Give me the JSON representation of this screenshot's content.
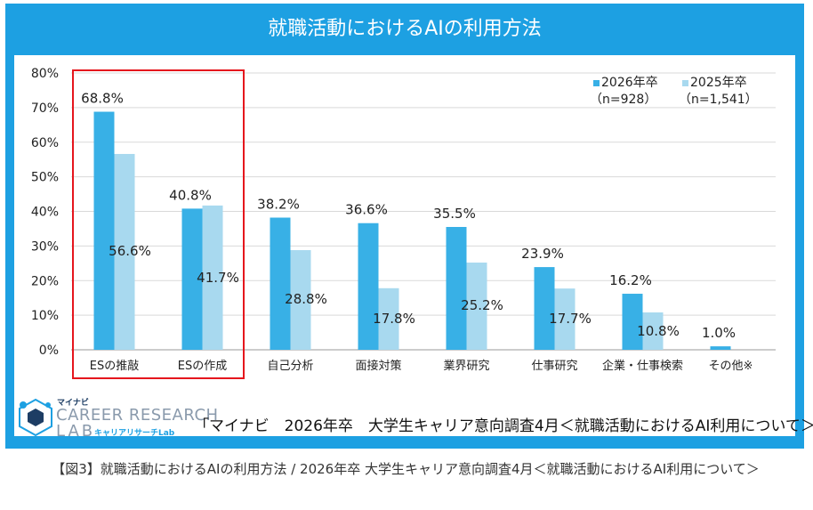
{
  "title": "就職活動におけるAIの利用方法",
  "legend": {
    "series1_label": "2026年卒",
    "series1_n": "（n=928）",
    "series2_label": "2025年卒",
    "series2_n": "（n=1,541）"
  },
  "logo": {
    "small": "マイナビ",
    "line1": "CAREER RESEARCH",
    "line2": "LAB",
    "jp": "キャリアリサーチLab"
  },
  "source": "「マイナビ　2026年卒　大学生キャリア意向調査4月＜就職活動におけるAI利用について＞」",
  "caption": "【図3】就職活動におけるAIの利用方法 / 2026年卒 大学生キャリア意向調査4月＜就職活動におけるAI利用について＞",
  "colors": {
    "frame": "#1da0e2",
    "series1": "#38b0e6",
    "series2": "#a8d9ef",
    "highlight": "#e5161d"
  },
  "chart_data": {
    "type": "bar",
    "categories": [
      "ESの推敲",
      "ESの作成",
      "自己分析",
      "面接対策",
      "業界研究",
      "仕事研究",
      "企業・仕事検索",
      "その他※"
    ],
    "series": [
      {
        "name": "2026年卒",
        "values": [
          68.8,
          40.8,
          38.2,
          36.6,
          35.5,
          23.9,
          16.2,
          1.0
        ],
        "labels": [
          "68.8%",
          "40.8%",
          "38.2%",
          "36.6%",
          "35.5%",
          "23.9%",
          "16.2%",
          "1.0%"
        ]
      },
      {
        "name": "2025年卒",
        "values": [
          56.6,
          41.7,
          28.8,
          17.8,
          25.2,
          17.7,
          10.8,
          null
        ],
        "labels": [
          "56.6%",
          "41.7%",
          "28.8%",
          "17.8%",
          "25.2%",
          "17.7%",
          "10.8%",
          null
        ]
      }
    ],
    "yticks": [
      "0%",
      "10%",
      "20%",
      "30%",
      "40%",
      "50%",
      "60%",
      "70%",
      "80%"
    ],
    "ylim": [
      0,
      80
    ],
    "grid": true,
    "legend_position": "top-right",
    "highlighted_categories": [
      "ESの推敲",
      "ESの作成"
    ]
  }
}
